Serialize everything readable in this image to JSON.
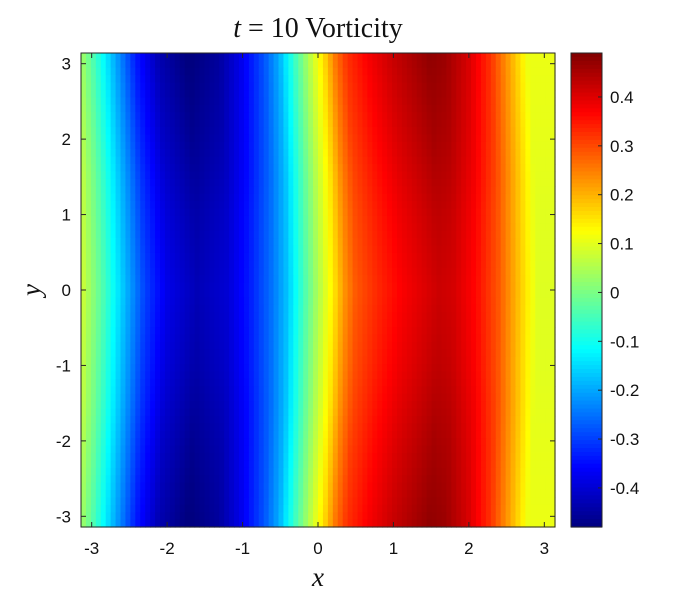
{
  "chart_data": {
    "type": "heatmap",
    "title": "t = 10 Vorticity",
    "title_var": "t",
    "title_rest": " = 10 Vorticity",
    "xlabel": "x",
    "ylabel": "y",
    "xlim": [
      -3.1416,
      3.1416
    ],
    "ylim": [
      -3.1416,
      3.1416
    ],
    "xticks": [
      -3,
      -2,
      -1,
      0,
      1,
      2,
      3
    ],
    "xtick_labels": [
      "-3",
      "-2",
      "-1",
      "0",
      "1",
      "2",
      "3"
    ],
    "yticks": [
      -3,
      -2,
      -1,
      0,
      1,
      2,
      3
    ],
    "ytick_labels": [
      "-3",
      "-2",
      "-1",
      "0",
      "1",
      "2",
      "3"
    ],
    "colormap": "jet",
    "colorbar": {
      "location": "right",
      "clim": [
        -0.48,
        0.49
      ],
      "ticks": [
        -0.4,
        -0.3,
        -0.2,
        -0.1,
        0,
        0.1,
        0.2,
        0.3,
        0.4
      ],
      "tick_labels": [
        "-0.4",
        "-0.3",
        "-0.2",
        "-0.1",
        "0",
        "0.1",
        "0.2",
        "0.3",
        "0.4"
      ]
    },
    "field": {
      "description_of_values": "vorticity w(x,y)",
      "x_profile": {
        "x": [
          -3.14,
          -2.9,
          -2.6,
          -2.3,
          -2.0,
          -1.6,
          -1.2,
          -0.9,
          -0.6,
          -0.4,
          -0.2,
          0.0,
          0.2,
          0.35,
          0.5,
          0.8,
          1.1,
          1.4,
          1.6,
          1.8,
          2.1,
          2.4,
          2.7,
          2.9,
          3.14
        ],
        "w": [
          0.09,
          -0.02,
          -0.17,
          -0.31,
          -0.4,
          -0.45,
          -0.42,
          -0.35,
          -0.26,
          -0.18,
          -0.06,
          0.05,
          0.15,
          0.24,
          0.3,
          0.35,
          0.39,
          0.42,
          0.44,
          0.43,
          0.38,
          0.3,
          0.18,
          0.1,
          0.1
        ]
      },
      "y_modulation": {
        "y": [
          -3.14,
          -2.0,
          -1.0,
          0.0,
          1.0,
          2.0,
          3.14
        ],
        "factor": [
          1.08,
          1.03,
          0.98,
          0.95,
          0.98,
          1.03,
          1.08
        ]
      },
      "x_shift": {
        "y": [
          -3.14,
          -1.5,
          0.0,
          1.5,
          3.14
        ],
        "dx": [
          -0.12,
          -0.04,
          0.0,
          -0.04,
          -0.12
        ]
      }
    }
  }
}
